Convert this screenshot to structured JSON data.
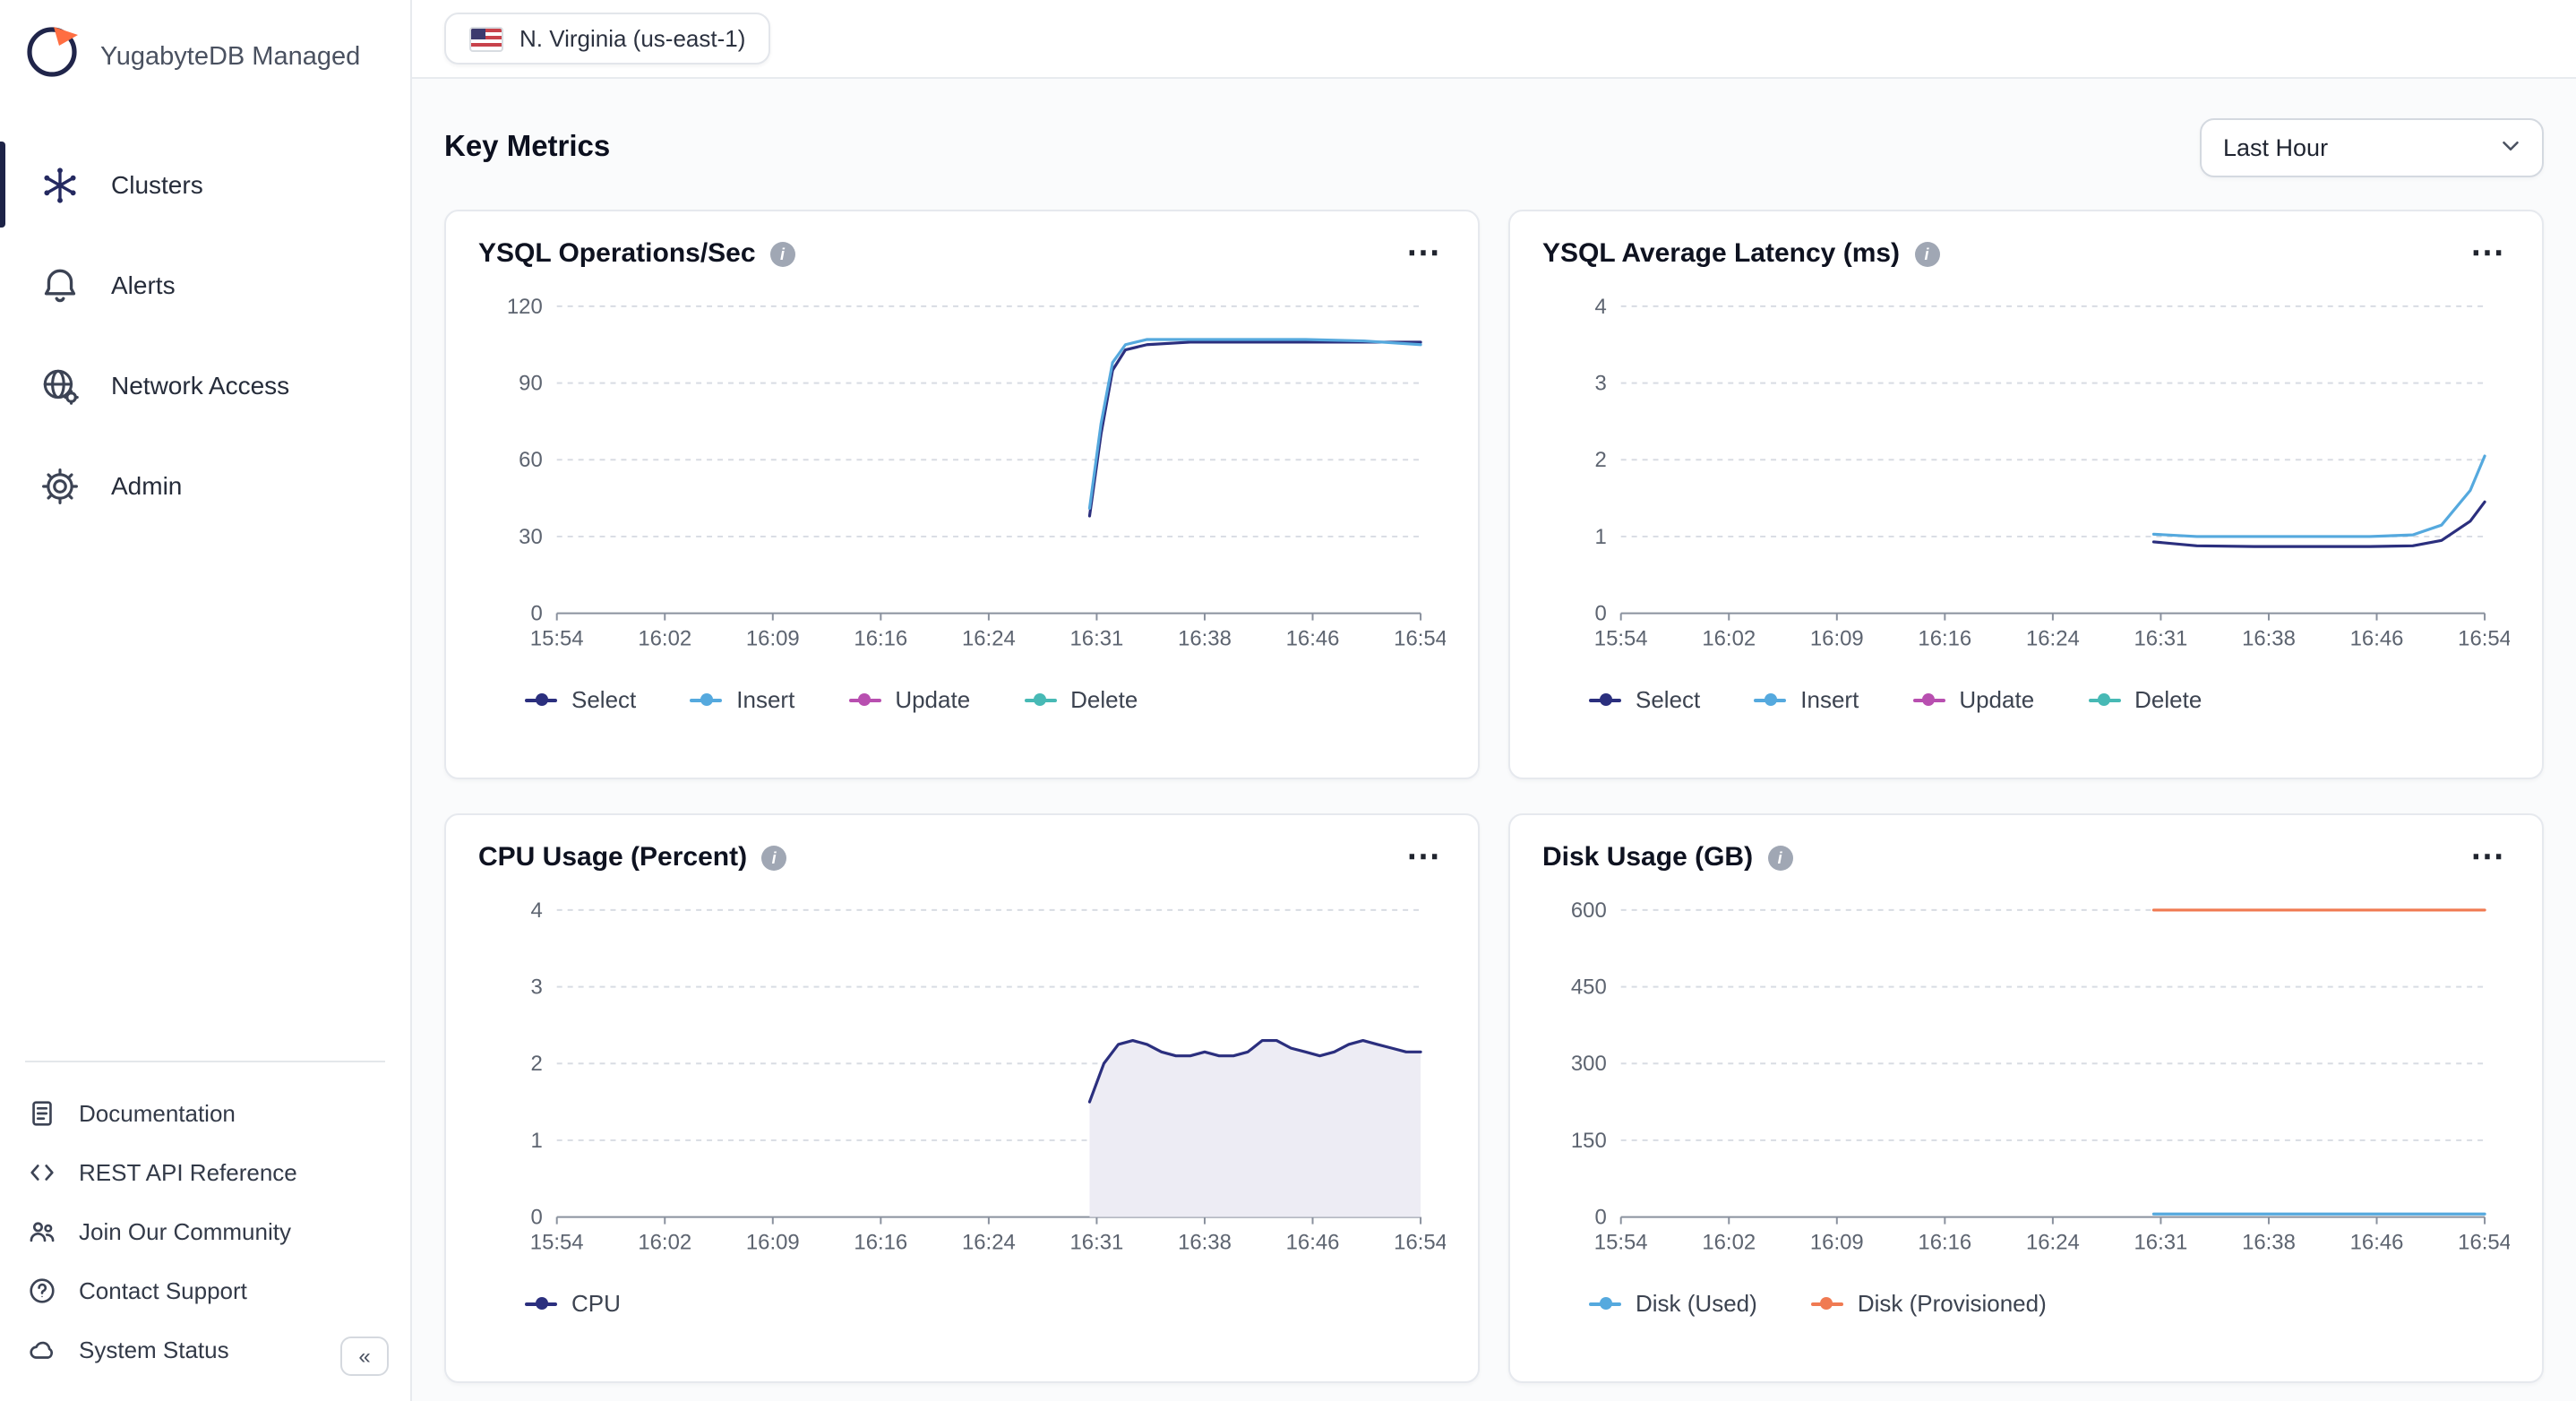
{
  "brand": {
    "name": "YugabyteDB Managed"
  },
  "colors": {
    "brand_orange": "#ff6e42",
    "brand_navy": "#20254a"
  },
  "icons": {
    "more_horizontal": "⋯",
    "info": "i",
    "collapse": "«"
  },
  "sidebar": {
    "items": [
      {
        "label": "Clusters",
        "active": true
      },
      {
        "label": "Alerts",
        "active": false
      },
      {
        "label": "Network Access",
        "active": false
      },
      {
        "label": "Admin",
        "active": false
      }
    ],
    "footer_items": [
      {
        "label": "Documentation"
      },
      {
        "label": "REST API Reference"
      },
      {
        "label": "Join Our Community"
      },
      {
        "label": "Contact Support"
      },
      {
        "label": "System Status"
      }
    ]
  },
  "header": {
    "region_chip": "N. Virginia (us-east-1)"
  },
  "metrics": {
    "title": "Key Metrics",
    "time_range": "Last Hour"
  },
  "chart_data": [
    {
      "type": "line",
      "title": "YSQL Operations/Sec",
      "xlabel": "",
      "ylabel": "",
      "xlim": [
        0,
        60
      ],
      "ylim": [
        0,
        120
      ],
      "y_ticks": [
        0,
        30,
        60,
        90,
        120
      ],
      "x_ticks": [
        "15:54",
        "16:02",
        "16:09",
        "16:16",
        "16:24",
        "16:31",
        "16:38",
        "16:46",
        "16:54"
      ],
      "grid": "dashed-horizontal",
      "legend_position": "bottom",
      "series": [
        {
          "name": "Select",
          "color": "#2b2f7e",
          "points": [
            [
              37,
              38
            ],
            [
              37.8,
              70
            ],
            [
              38.6,
              95
            ],
            [
              39.5,
              103
            ],
            [
              41,
              105
            ],
            [
              44,
              106
            ],
            [
              48,
              106
            ],
            [
              52,
              106
            ],
            [
              56,
              106
            ],
            [
              60,
              106
            ]
          ]
        },
        {
          "name": "Insert",
          "color": "#55a9de",
          "points": [
            [
              37,
              41
            ],
            [
              37.8,
              74
            ],
            [
              38.6,
              98
            ],
            [
              39.5,
              105
            ],
            [
              41,
              107
            ],
            [
              44,
              107
            ],
            [
              48,
              107
            ],
            [
              52,
              107
            ],
            [
              56,
              106.5
            ],
            [
              60,
              105
            ]
          ]
        },
        {
          "name": "Update",
          "color": "#b84fb0",
          "points": []
        },
        {
          "name": "Delete",
          "color": "#47b9b5",
          "points": []
        }
      ]
    },
    {
      "type": "line",
      "title": "YSQL Average Latency (ms)",
      "xlabel": "",
      "ylabel": "",
      "xlim": [
        0,
        60
      ],
      "ylim": [
        0,
        4
      ],
      "y_ticks": [
        0,
        1,
        2,
        3,
        4
      ],
      "x_ticks": [
        "15:54",
        "16:02",
        "16:09",
        "16:16",
        "16:24",
        "16:31",
        "16:38",
        "16:46",
        "16:54"
      ],
      "grid": "dashed-horizontal",
      "legend_position": "bottom",
      "series": [
        {
          "name": "Select",
          "color": "#2b2f7e",
          "points": [
            [
              37,
              0.93
            ],
            [
              40,
              0.88
            ],
            [
              44,
              0.87
            ],
            [
              48,
              0.87
            ],
            [
              52,
              0.87
            ],
            [
              55,
              0.88
            ],
            [
              57,
              0.95
            ],
            [
              59,
              1.2
            ],
            [
              60,
              1.45
            ]
          ]
        },
        {
          "name": "Insert",
          "color": "#55a9de",
          "points": [
            [
              37,
              1.03
            ],
            [
              40,
              1.0
            ],
            [
              44,
              1.0
            ],
            [
              48,
              1.0
            ],
            [
              52,
              1.0
            ],
            [
              55,
              1.02
            ],
            [
              57,
              1.15
            ],
            [
              59,
              1.6
            ],
            [
              60,
              2.05
            ]
          ]
        },
        {
          "name": "Update",
          "color": "#b84fb0",
          "points": []
        },
        {
          "name": "Delete",
          "color": "#47b9b5",
          "points": []
        }
      ]
    },
    {
      "type": "area",
      "title": "CPU Usage (Percent)",
      "xlabel": "",
      "ylabel": "",
      "xlim": [
        0,
        60
      ],
      "ylim": [
        0,
        4
      ],
      "y_ticks": [
        0,
        1,
        2,
        3,
        4
      ],
      "x_ticks": [
        "15:54",
        "16:02",
        "16:09",
        "16:16",
        "16:24",
        "16:31",
        "16:38",
        "16:46",
        "16:54"
      ],
      "grid": "dashed-horizontal",
      "legend_position": "bottom",
      "series": [
        {
          "name": "CPU",
          "color": "#2b2f7e",
          "area": true,
          "fill": "#edecf4",
          "points": [
            [
              37,
              1.5
            ],
            [
              38,
              2.0
            ],
            [
              39,
              2.25
            ],
            [
              40,
              2.3
            ],
            [
              41,
              2.25
            ],
            [
              42,
              2.15
            ],
            [
              43,
              2.1
            ],
            [
              44,
              2.1
            ],
            [
              45,
              2.15
            ],
            [
              46,
              2.1
            ],
            [
              47,
              2.1
            ],
            [
              48,
              2.15
            ],
            [
              49,
              2.3
            ],
            [
              50,
              2.3
            ],
            [
              51,
              2.2
            ],
            [
              52,
              2.15
            ],
            [
              53,
              2.1
            ],
            [
              54,
              2.15
            ],
            [
              55,
              2.25
            ],
            [
              56,
              2.3
            ],
            [
              57,
              2.25
            ],
            [
              58,
              2.2
            ],
            [
              59,
              2.15
            ],
            [
              60,
              2.15
            ]
          ]
        }
      ]
    },
    {
      "type": "line",
      "title": "Disk Usage (GB)",
      "xlabel": "",
      "ylabel": "",
      "xlim": [
        0,
        60
      ],
      "ylim": [
        0,
        600
      ],
      "y_ticks": [
        0,
        150,
        300,
        450,
        600
      ],
      "x_ticks": [
        "15:54",
        "16:02",
        "16:09",
        "16:16",
        "16:24",
        "16:31",
        "16:38",
        "16:46",
        "16:54"
      ],
      "grid": "dashed-horizontal",
      "legend_position": "bottom",
      "series": [
        {
          "name": "Disk (Used)",
          "color": "#55a9de",
          "points": [
            [
              37,
              6
            ],
            [
              60,
              6
            ]
          ]
        },
        {
          "name": "Disk (Provisioned)",
          "color": "#f07a52",
          "points": [
            [
              37,
              600
            ],
            [
              60,
              600
            ]
          ]
        }
      ]
    }
  ]
}
